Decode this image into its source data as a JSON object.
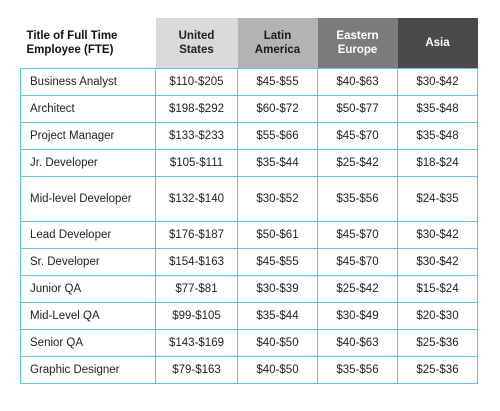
{
  "table": {
    "headers": [
      [
        "Title of Full Time",
        "Employee (FTE)"
      ],
      [
        "United",
        "States"
      ],
      [
        "Latin",
        "America"
      ],
      [
        "Eastern",
        "Europe"
      ],
      [
        "Asia"
      ]
    ],
    "rows": [
      {
        "title": "Business Analyst",
        "us": "$110-$205",
        "latam": "$45-$55",
        "ee": "$40-$63",
        "asia": "$30-$42"
      },
      {
        "title": "Architect",
        "us": "$198-$292",
        "latam": "$60-$72",
        "ee": "$50-$77",
        "asia": "$35-$48"
      },
      {
        "title": "Project Manager",
        "us": "$133-$233",
        "latam": "$55-$66",
        "ee": "$45-$70",
        "asia": "$35-$48"
      },
      {
        "title": "Jr. Developer",
        "us": "$105-$111",
        "latam": "$35-$44",
        "ee": "$25-$42",
        "asia": "$18-$24"
      },
      {
        "title": "Mid-level Developer",
        "us": "$132-$140",
        "latam": "$30-$52",
        "ee": "$35-$56",
        "asia": "$24-$35"
      },
      {
        "title": "Lead Developer",
        "us": "$176-$187",
        "latam": "$50-$61",
        "ee": "$45-$70",
        "asia": "$30-$42"
      },
      {
        "title": "Sr. Developer",
        "us": "$154-$163",
        "latam": "$45-$55",
        "ee": "$45-$70",
        "asia": "$30-$42"
      },
      {
        "title": "Junior QA",
        "us": "$77-$81",
        "latam": "$30-$39",
        "ee": "$25-$42",
        "asia": "$15-$24"
      },
      {
        "title": "Mid-Level QA",
        "us": "$99-$105",
        "latam": "$35-$44",
        "ee": "$30-$49",
        "asia": "$20-$30"
      },
      {
        "title": "Senior QA",
        "us": "$143-$169",
        "latam": "$40-$50",
        "ee": "$40-$63",
        "asia": "$25-$36"
      },
      {
        "title": "Graphic Designer",
        "us": "$79-$163",
        "latam": "$40-$50",
        "ee": "$35-$56",
        "asia": "$25-$36"
      }
    ]
  }
}
